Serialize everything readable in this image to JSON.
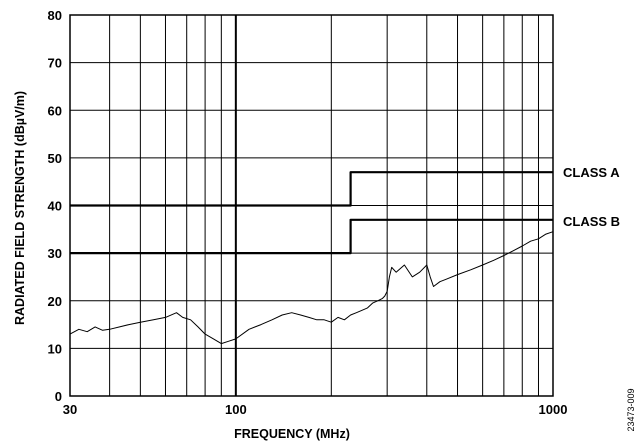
{
  "chart_data": {
    "type": "line",
    "xlabel": "FREQUENCY (MHz)",
    "ylabel": "RADIATED FIELD STRENGTH (dBµV/m)",
    "x_scale": "log",
    "xlim": [
      30,
      1000
    ],
    "ylim": [
      0,
      80
    ],
    "x_tick_labels": [
      {
        "value": 30,
        "label": "30"
      },
      {
        "value": 100,
        "label": "100"
      },
      {
        "value": 1000,
        "label": "1000"
      }
    ],
    "y_tick_labels": [
      {
        "value": 0,
        "label": "0"
      },
      {
        "value": 10,
        "label": "10"
      },
      {
        "value": 20,
        "label": "20"
      },
      {
        "value": 30,
        "label": "30"
      },
      {
        "value": 40,
        "label": "40"
      },
      {
        "value": 50,
        "label": "50"
      },
      {
        "value": 60,
        "label": "60"
      },
      {
        "value": 70,
        "label": "70"
      },
      {
        "value": 80,
        "label": "80"
      }
    ],
    "x_gridlines": [
      30,
      40,
      50,
      60,
      70,
      80,
      90,
      100,
      200,
      300,
      400,
      500,
      600,
      700,
      800,
      900,
      1000
    ],
    "y_gridlines": [
      0,
      10,
      20,
      30,
      40,
      50,
      60,
      70,
      80
    ],
    "grid": true,
    "series": [
      {
        "name": "CLASS A",
        "type": "step",
        "x": [
          30,
          230,
          230,
          1000
        ],
        "y": [
          40,
          40,
          47,
          47
        ]
      },
      {
        "name": "CLASS B",
        "type": "step",
        "x": [
          30,
          230,
          230,
          1000
        ],
        "y": [
          30,
          30,
          37,
          37
        ]
      },
      {
        "name": "",
        "type": "line",
        "x": [
          30,
          32,
          34,
          36,
          38,
          40,
          43,
          46,
          50,
          55,
          60,
          65,
          68,
          72,
          76,
          80,
          85,
          90,
          95,
          100,
          110,
          120,
          130,
          140,
          150,
          160,
          170,
          180,
          190,
          200,
          210,
          220,
          230,
          240,
          250,
          260,
          270,
          280,
          290,
          295,
          300,
          305,
          310,
          320,
          340,
          360,
          380,
          400,
          410,
          420,
          440,
          460,
          500,
          550,
          600,
          650,
          700,
          750,
          800,
          850,
          900,
          950,
          1000
        ],
        "y": [
          13,
          14,
          13.5,
          14.5,
          13.8,
          14,
          14.5,
          15,
          15.5,
          16,
          16.5,
          17.5,
          16.5,
          16,
          14.5,
          13,
          12,
          11,
          11.5,
          12,
          14,
          15,
          16,
          17,
          17.5,
          17,
          16.5,
          16,
          16,
          15.5,
          16.5,
          16,
          17,
          17.5,
          18,
          18.5,
          19.5,
          20,
          20.5,
          21,
          22,
          25,
          27,
          26,
          27.5,
          25,
          26,
          27.5,
          25,
          23,
          24,
          24.5,
          25.5,
          26.5,
          27.5,
          28.5,
          29.5,
          30.5,
          31.5,
          32.5,
          33,
          34,
          34.5
        ]
      }
    ]
  },
  "annotations": {
    "class_a": "CLASS A",
    "class_b": "CLASS B",
    "figure_id": "23473-009"
  },
  "colors": {
    "line": "#000000",
    "grid": "#000000",
    "background": "#ffffff"
  }
}
